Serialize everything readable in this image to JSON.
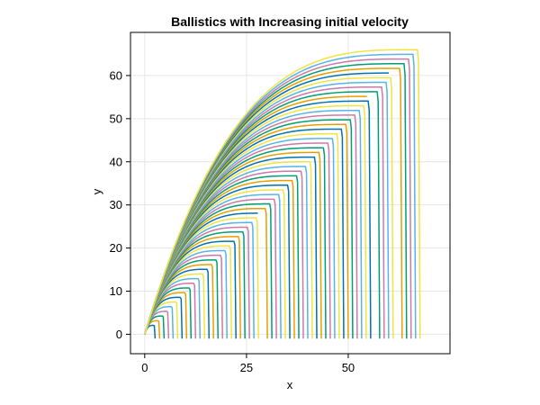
{
  "chart_data": {
    "type": "line",
    "title": "Ballistics with Increasing initial velocity",
    "xlabel": "x",
    "ylabel": "y",
    "xlim": [
      -3.5,
      75
    ],
    "ylim": [
      -4.5,
      70
    ],
    "xticks": [
      0,
      25,
      50
    ],
    "yticks": [
      0,
      10,
      20,
      30,
      40,
      50,
      60
    ],
    "grid": true,
    "legend": "none",
    "series_colors": [
      "#0072b2",
      "#e69f00",
      "#009e73",
      "#cc79a7",
      "#56b4e9",
      "#f0e442"
    ],
    "series_generator": {
      "count": 60,
      "launch_angle_deg": 45,
      "apex_x_first": 2.1,
      "apex_x_last": 67,
      "landing_y": -1
    }
  }
}
